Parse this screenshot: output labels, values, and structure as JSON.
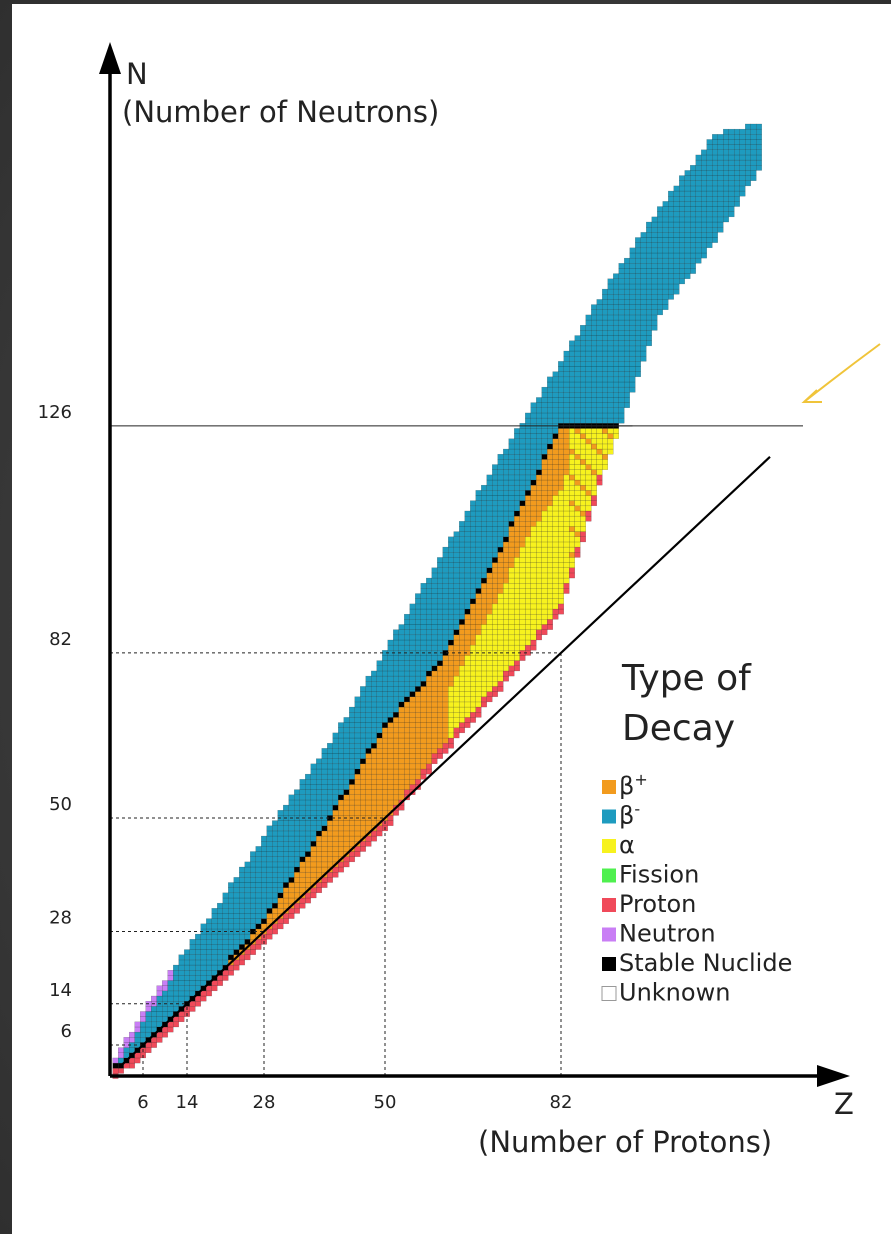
{
  "colors": {
    "beta_plus": "#f29b1e",
    "beta_minus": "#1e9bbf",
    "alpha": "#f7f21e",
    "fission": "#4ff04f",
    "proton": "#f04a5a",
    "neutron": "#c97ef5",
    "stable": "#000000",
    "unknown": "#ffffff",
    "arrow": "#f0c43a"
  },
  "chart_data": {
    "type": "heatmap",
    "xaxis": {
      "symbol": "Z",
      "label": "(Number of Protons)",
      "ticks": [
        6,
        14,
        28,
        50,
        82
      ]
    },
    "yaxis": {
      "symbol": "N",
      "label": "(Number of Neutrons)",
      "ticks": [
        6,
        14,
        28,
        50,
        82,
        126
      ]
    },
    "magic_numbers": [
      6,
      14,
      28,
      50,
      82,
      126
    ],
    "reference_line": "N = Z",
    "grid": false,
    "legend_placement": "right",
    "legend": {
      "title_line1": "Type of",
      "title_line2": "Decay",
      "items": [
        {
          "key": "beta_plus",
          "label": "β",
          "sup": "+"
        },
        {
          "key": "beta_minus",
          "label": "β",
          "sup": "-"
        },
        {
          "key": "alpha",
          "label": "α",
          "sup": ""
        },
        {
          "key": "fission",
          "label": "Fission",
          "sup": ""
        },
        {
          "key": "proton",
          "label": "Proton",
          "sup": ""
        },
        {
          "key": "neutron",
          "label": "Neutron",
          "sup": ""
        },
        {
          "key": "stable",
          "label": "Stable Nuclide",
          "sup": ""
        },
        {
          "key": "unknown",
          "label": "Unknown",
          "sup": ""
        }
      ]
    },
    "stable_valley": [
      [
        2,
        2
      ],
      [
        6,
        6
      ],
      [
        14,
        14
      ],
      [
        20,
        20
      ],
      [
        28,
        30
      ],
      [
        40,
        50
      ],
      [
        50,
        68
      ],
      [
        60,
        80
      ],
      [
        70,
        100
      ],
      [
        82,
        126
      ]
    ],
    "band_lower_n": [
      [
        1,
        0
      ],
      [
        6,
        4
      ],
      [
        14,
        12
      ],
      [
        28,
        26
      ],
      [
        50,
        48
      ],
      [
        60,
        62
      ],
      [
        70,
        74
      ],
      [
        82,
        90
      ],
      [
        90,
        118
      ],
      [
        100,
        148
      ],
      [
        110,
        162
      ],
      [
        118,
        176
      ]
    ],
    "band_upper_n": [
      [
        1,
        3
      ],
      [
        6,
        12
      ],
      [
        14,
        24
      ],
      [
        28,
        46
      ],
      [
        40,
        64
      ],
      [
        50,
        82
      ],
      [
        60,
        100
      ],
      [
        70,
        118
      ],
      [
        82,
        138
      ],
      [
        90,
        152
      ],
      [
        100,
        168
      ],
      [
        110,
        182
      ],
      [
        118,
        184
      ]
    ]
  }
}
